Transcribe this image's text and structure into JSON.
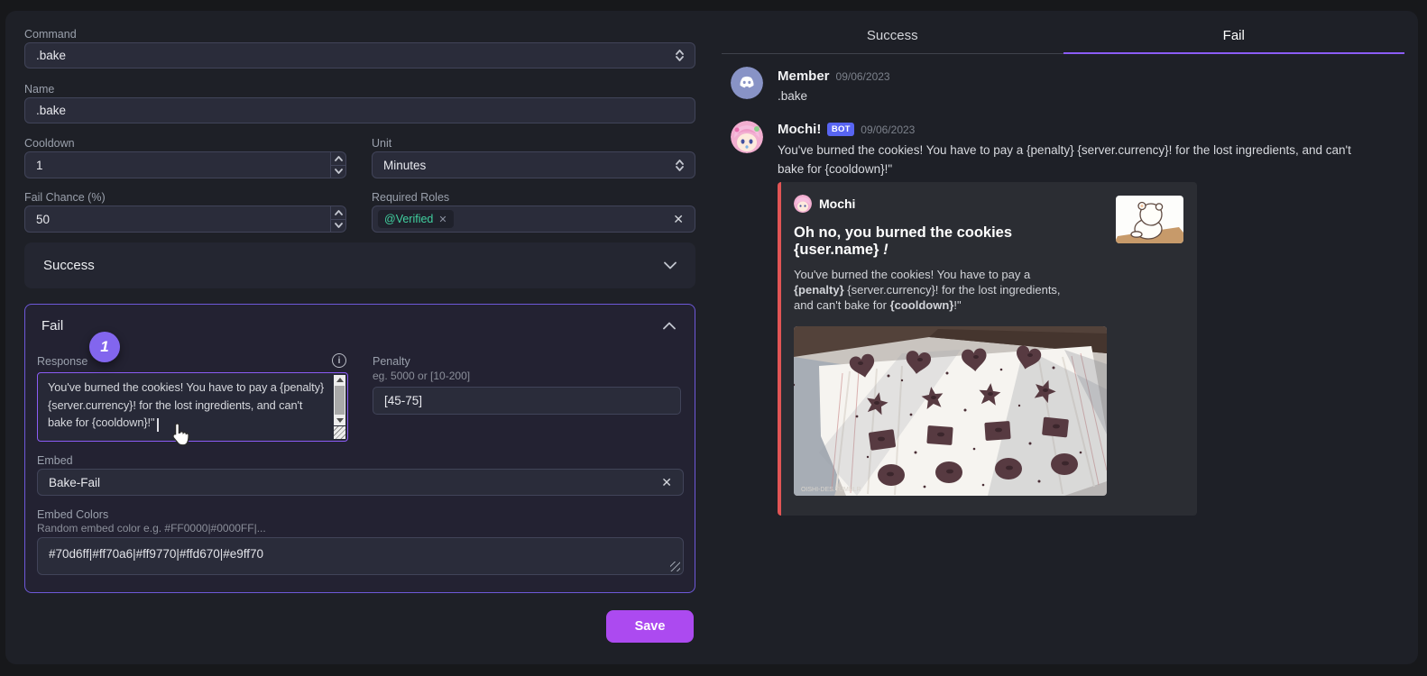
{
  "icons": {
    "close": "✕",
    "info": "i"
  },
  "form": {
    "command": {
      "label": "Command",
      "value": ".bake"
    },
    "name": {
      "label": "Name",
      "value": ".bake"
    },
    "cooldown": {
      "label": "Cooldown",
      "value": "1"
    },
    "unit": {
      "label": "Unit",
      "value": "Minutes"
    },
    "fail_chance": {
      "label": "Fail Chance (%)",
      "value": "50"
    },
    "required_roles": {
      "label": "Required Roles",
      "chip": "@Verified"
    },
    "success_section": {
      "title": "Success"
    },
    "fail_section": {
      "title": "Fail",
      "step_badge": "1",
      "response": {
        "label": "Response",
        "value": "You've burned the cookies! You have to pay a {penalty} {server.currency}! for the lost ingredients, and can't bake for {cooldown}!\""
      },
      "penalty": {
        "label": "Penalty",
        "hint": "eg. 5000 or [10-200]",
        "value": "[45-75]"
      },
      "embed": {
        "label": "Embed",
        "value": "Bake-Fail"
      },
      "embed_colors": {
        "label": "Embed Colors",
        "hint": "Random embed color e.g. #FF0000|#0000FF|...",
        "value": "#70d6ff|#ff70a6|#ff9770|#ffd670|#e9ff70"
      }
    },
    "save_label": "Save"
  },
  "preview": {
    "tabs": [
      {
        "label": "Success",
        "active": false
      },
      {
        "label": "Fail",
        "active": true
      }
    ],
    "messages": [
      {
        "author": "Member",
        "timestamp": "09/06/2023",
        "text": ".bake"
      },
      {
        "author": "Mochi!",
        "bot_badge": "BOT",
        "timestamp": "09/06/2023",
        "text": "You've burned the cookies! You have to pay a {penalty} {server.currency}! for the lost ingredients, and can't bake for {cooldown}!\""
      }
    ],
    "embed": {
      "author": "Mochi",
      "title": "Oh no, you burned the cookies {user.name} ",
      "title_suffix": "!",
      "description_segments": [
        {
          "text": "You've burned the cookies! You have to pay a ",
          "bold": false
        },
        {
          "text": "{penalty}",
          "bold": true
        },
        {
          "text": " {server.currency}! for the lost ingredients, and can't bake for ",
          "bold": false
        },
        {
          "text": "{cooldown}",
          "bold": true
        },
        {
          "text": "!\"",
          "bold": false
        }
      ],
      "accent_color": "#e25555",
      "image_watermark": "OISHI-DES.TUMBLR"
    }
  },
  "colors": {
    "accent_purple": "#8b5cf6",
    "save_button": "#ac4af0",
    "embed_accent": "#e25555",
    "bot_badge": "#5865f2",
    "role_chip_text": "#41d1a0"
  }
}
